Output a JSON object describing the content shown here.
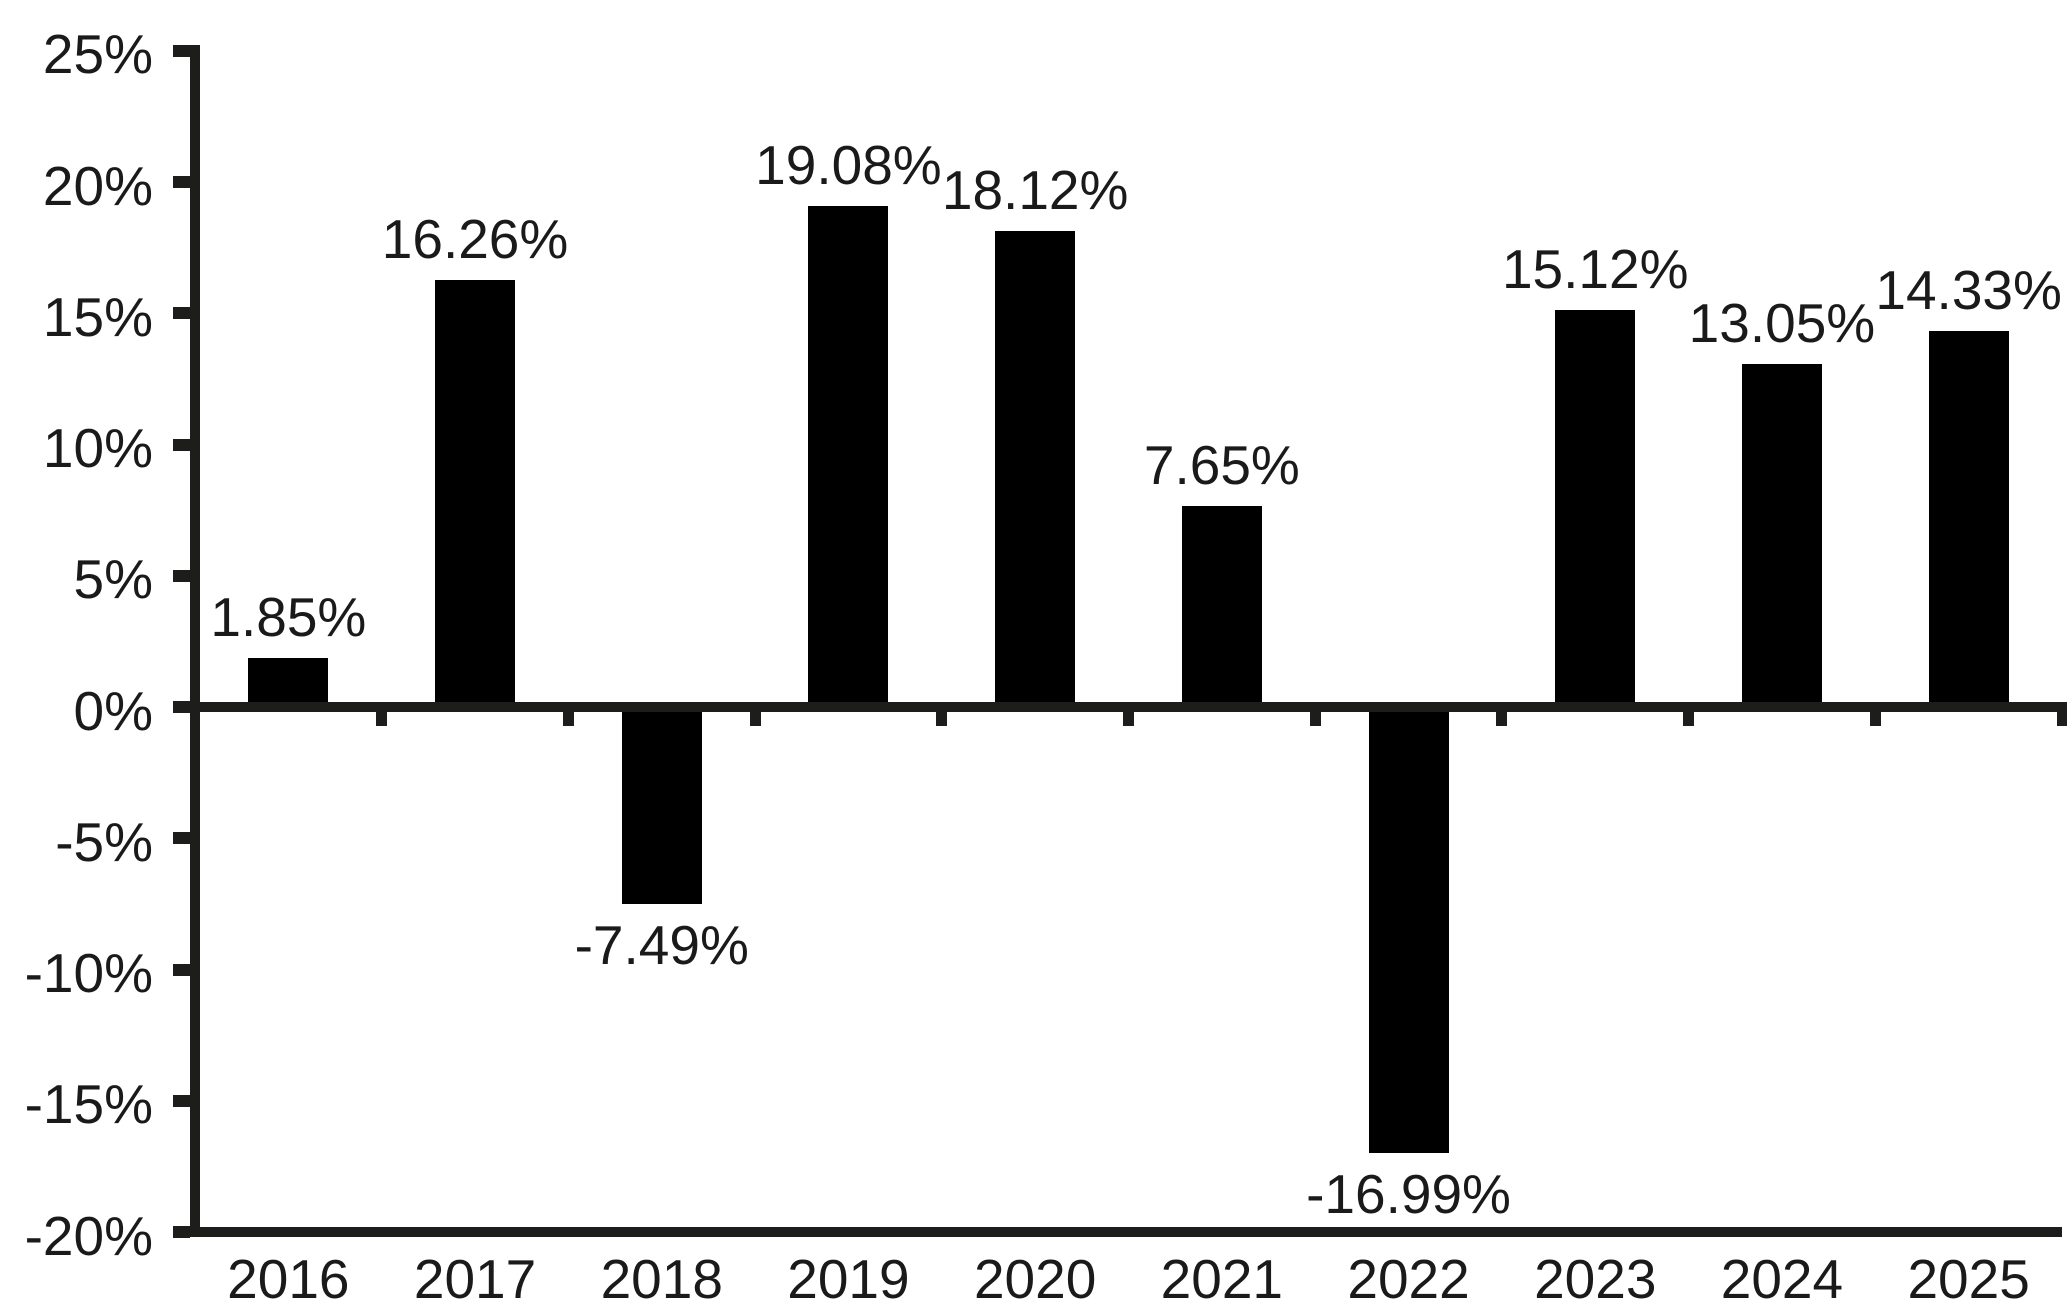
{
  "chart_data": {
    "type": "bar",
    "title": "",
    "xlabel": "",
    "ylabel": "",
    "categories": [
      "2016",
      "2017",
      "2018",
      "2019",
      "2020",
      "2021",
      "2022",
      "2023",
      "2024",
      "2025"
    ],
    "values": [
      1.85,
      16.26,
      -7.49,
      19.08,
      18.12,
      7.65,
      -16.99,
      15.12,
      13.05,
      14.33
    ],
    "value_labels": [
      "1.85%",
      "16.26%",
      "-7.49%",
      "19.08%",
      "18.12%",
      "7.65%",
      "-16.99%",
      "15.12%",
      "13.05%",
      "14.33%"
    ],
    "ylim": [
      -20,
      25
    ],
    "ytick_values": [
      25,
      20,
      15,
      10,
      5,
      0,
      -5,
      -10,
      -15,
      -20
    ],
    "ytick_labels": [
      "25%",
      "20%",
      "15%",
      "10%",
      "5%",
      "0%",
      "-5%",
      "-10%",
      "-15%",
      "-20%"
    ],
    "grid": false,
    "legend": "none",
    "bar_color": "#000000",
    "axis_color": "#1d1d1b",
    "text_color": "#1a1a1a",
    "background_color": "#ffffff"
  }
}
